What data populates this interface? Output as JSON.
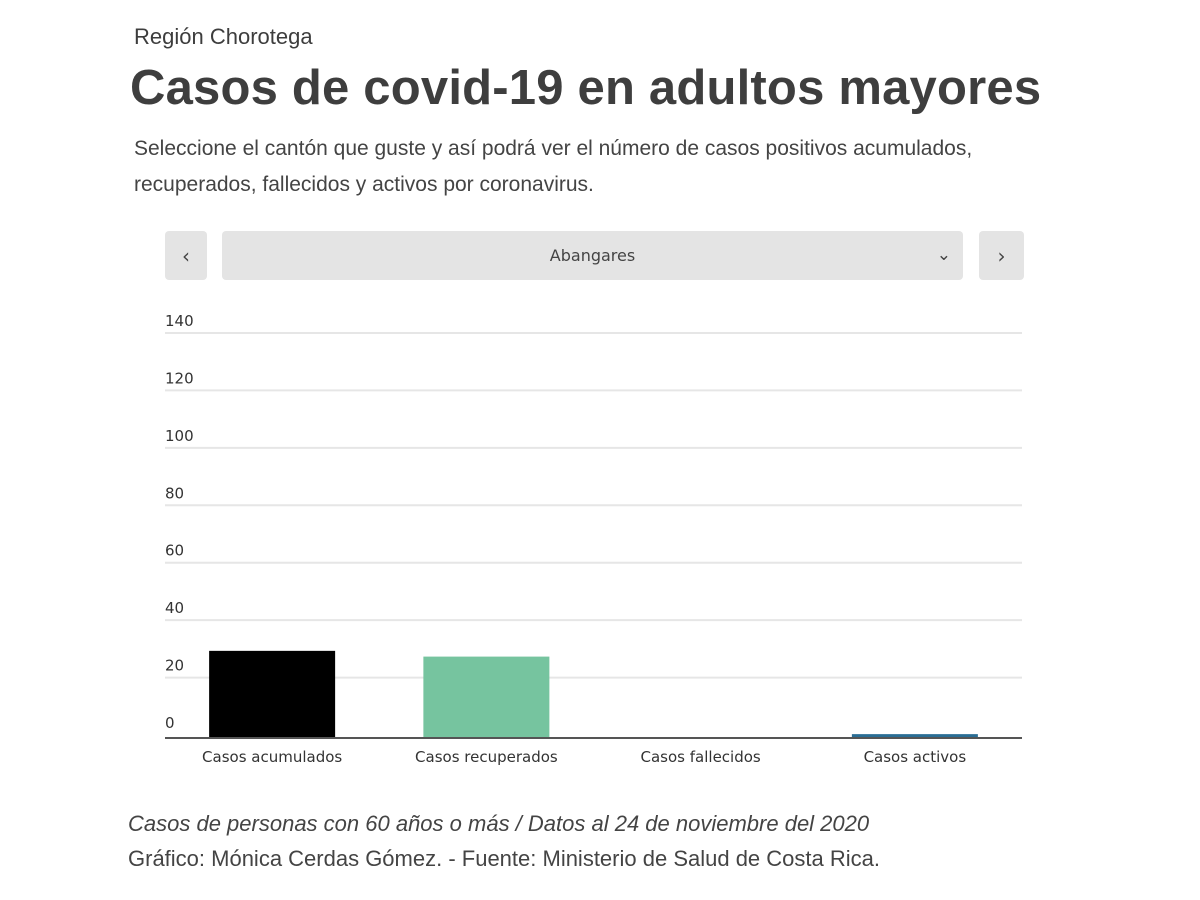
{
  "header": {
    "kicker": "Región Chorotega",
    "title": "Casos de covid-19 en adultos mayores",
    "description": "Seleccione el cantón que guste y así podrá ver el número de casos positivos acumulados, recuperados, fallecidos y activos por coronavirus."
  },
  "controls": {
    "prev_icon": "chevron-left-icon",
    "next_icon": "chevron-right-icon",
    "dropdown_icon": "chevron-down-icon",
    "selected_canton": "Abangares"
  },
  "chart_data": {
    "type": "bar",
    "categories": [
      "Casos acumulados",
      "Casos recuperados",
      "Casos fallecidos",
      "Casos activos"
    ],
    "values": [
      30,
      28,
      0,
      1
    ],
    "colors": [
      "#000000",
      "#76c49f",
      "#c0392b",
      "#2a6d94"
    ],
    "ylim": [
      0,
      140
    ],
    "yticks": [
      0,
      20,
      40,
      60,
      80,
      100,
      120,
      140
    ],
    "grid": true,
    "title": "",
    "xlabel": "",
    "ylabel": ""
  },
  "footer": {
    "note": "Casos de personas con 60 años o más / Datos al 24 de noviembre del 2020",
    "credit": "Gráfico: Mónica Cerdas Gómez. - Fuente: Ministerio de Salud de Costa Rica."
  }
}
